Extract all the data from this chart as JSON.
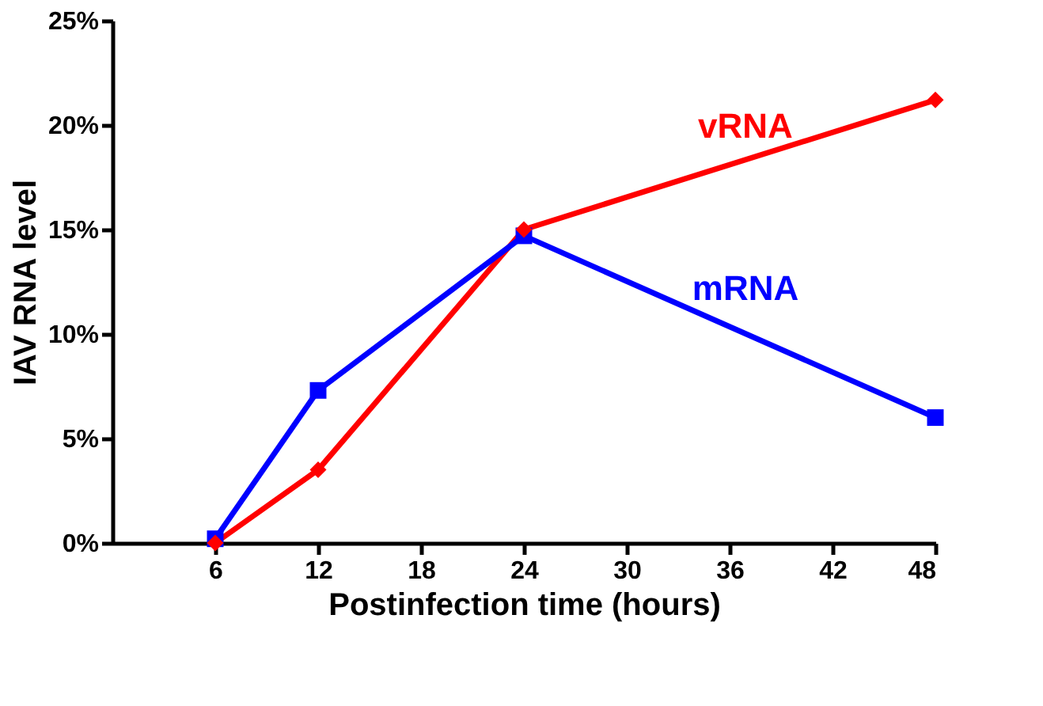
{
  "chart_data": {
    "type": "line",
    "xlabel": "Postinfection time (hours)",
    "ylabel": "IAV RNA level",
    "x": [
      6,
      12,
      24,
      48
    ],
    "series": [
      {
        "name": "vRNA",
        "color": "#ff0000",
        "marker": "diamond",
        "values": [
          0,
          3.5,
          15.0,
          21.2
        ]
      },
      {
        "name": "mRNA",
        "color": "#0000ff",
        "marker": "square",
        "values": [
          0.2,
          7.3,
          14.7,
          6.0
        ]
      }
    ],
    "xlim": [
      0,
      48
    ],
    "xticks": [
      6,
      12,
      18,
      24,
      30,
      36,
      42,
      48
    ],
    "ylim": [
      0,
      25
    ],
    "yticks": [
      {
        "value": 0,
        "label": "0%"
      },
      {
        "value": 5,
        "label": "5%"
      },
      {
        "value": 10,
        "label": "10%"
      },
      {
        "value": 15,
        "label": "15%"
      },
      {
        "value": 20,
        "label": "20%"
      },
      {
        "value": 25,
        "label": "25%"
      }
    ],
    "grid": false,
    "legend": false,
    "line_style": "solid"
  }
}
